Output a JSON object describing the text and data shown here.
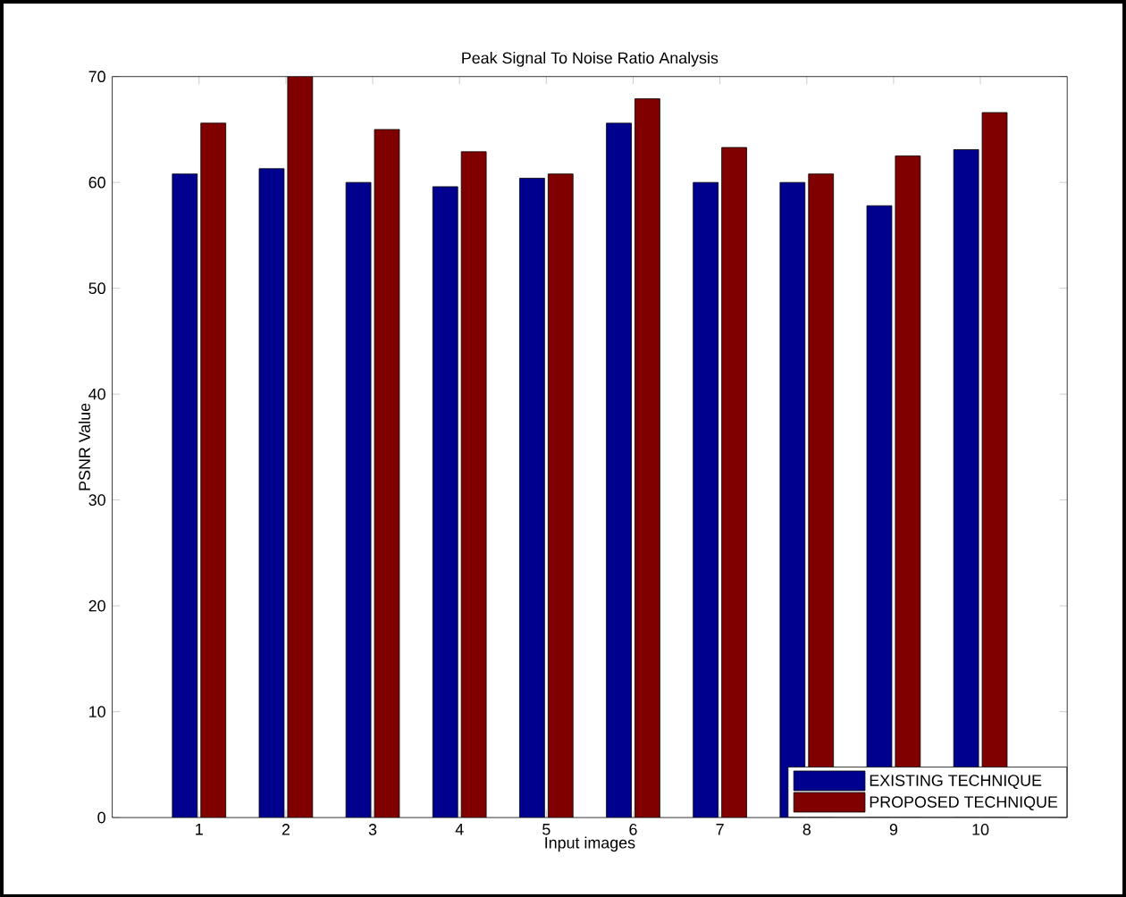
{
  "chart_data": {
    "type": "bar",
    "title": "Peak Signal To Noise Ratio Analysis",
    "xlabel": "Input images",
    "ylabel": "PSNR Value",
    "categories": [
      "1",
      "2",
      "3",
      "4",
      "5",
      "6",
      "7",
      "8",
      "9",
      "10"
    ],
    "series": [
      {
        "name": "EXISTING TECHNIQUE",
        "color": "#00008f",
        "values": [
          60.8,
          61.3,
          60,
          59.6,
          60.4,
          65.6,
          60,
          60,
          57.8,
          63.1
        ]
      },
      {
        "name": "PROPOSED TECHNIQUE",
        "color": "#800000",
        "values": [
          65.6,
          70,
          65,
          62.9,
          60.8,
          67.9,
          63.3,
          60.8,
          62.5,
          66.6
        ]
      }
    ],
    "ylim": [
      0,
      70
    ],
    "yticks": [
      0,
      10,
      20,
      30,
      40,
      50,
      60,
      70
    ],
    "legend": "bottom right",
    "grid": false
  }
}
